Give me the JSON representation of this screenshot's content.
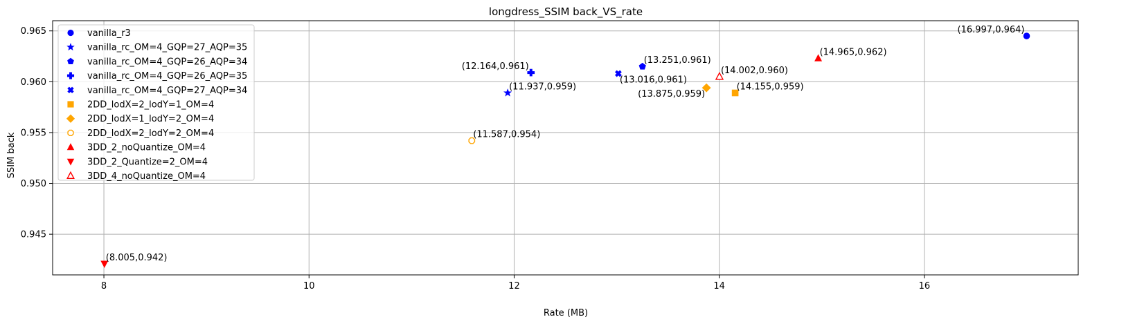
{
  "chart_data": {
    "type": "scatter",
    "title": "longdress_SSIM back_VS_rate",
    "xlabel": "Rate (MB)",
    "ylabel": "SSIM back",
    "xlim": [
      7.5,
      17.5
    ],
    "ylim": [
      0.941,
      0.966
    ],
    "xticks": [
      8,
      10,
      12,
      14,
      16
    ],
    "yticks": [
      0.945,
      0.95,
      0.955,
      0.96,
      0.965
    ],
    "ytick_labels": [
      "0.945",
      "0.950",
      "0.955",
      "0.960",
      "0.965"
    ],
    "grid": true,
    "legend_position": "upper-left",
    "series": [
      {
        "name": "vanilla_r3",
        "marker": "circle",
        "color": "#0000ff",
        "filled": true,
        "x": 16.997,
        "y": 0.9645,
        "label": "(16.997,0.964)",
        "label_side": "left"
      },
      {
        "name": "vanilla_rc_OM=4_GQP=27_AQP=35",
        "marker": "star",
        "color": "#0000ff",
        "filled": true,
        "x": 11.937,
        "y": 0.9589,
        "label": "(11.937,0.959)",
        "label_side": "right"
      },
      {
        "name": "vanilla_rc_OM=4_GQP=26_AQP=34",
        "marker": "pentagon",
        "color": "#0000ff",
        "filled": true,
        "x": 13.251,
        "y": 0.9615,
        "label": "(13.251,0.961)",
        "label_side": "right"
      },
      {
        "name": "vanilla_rc_OM=4_GQP=26_AQP=35",
        "marker": "plus",
        "color": "#0000ff",
        "filled": true,
        "x": 12.164,
        "y": 0.9609,
        "label": "(12.164,0.961)",
        "label_side": "left"
      },
      {
        "name": "vanilla_rc_OM=4_GQP=27_AQP=34",
        "marker": "x",
        "color": "#0000ff",
        "filled": true,
        "x": 13.016,
        "y": 0.9608,
        "label": "(13.016,0.961)",
        "label_side": "below-right"
      },
      {
        "name": "2DD_lodX=2_lodY=1_OM=4",
        "marker": "square",
        "color": "#ffa500",
        "filled": true,
        "x": 14.155,
        "y": 0.9589,
        "label": "(14.155,0.959)",
        "label_side": "right"
      },
      {
        "name": "2DD_lodX=1_lodY=2_OM=4",
        "marker": "diamond",
        "color": "#ffa500",
        "filled": true,
        "x": 13.875,
        "y": 0.9594,
        "label": "(13.875,0.959)",
        "label_side": "below-left"
      },
      {
        "name": "2DD_lodX=2_lodY=2_OM=4",
        "marker": "octagon",
        "color": "#ffa500",
        "filled": false,
        "x": 11.587,
        "y": 0.9542,
        "label": "(11.587,0.954)",
        "label_side": "right"
      },
      {
        "name": "3DD_2_noQuantize_OM=4",
        "marker": "triangle-up",
        "color": "#ff0000",
        "filled": true,
        "x": 14.965,
        "y": 0.9623,
        "label": "(14.965,0.962)",
        "label_side": "right"
      },
      {
        "name": "3DD_2_Quantize=2_OM=4",
        "marker": "triangle-down",
        "color": "#ff0000",
        "filled": true,
        "x": 8.005,
        "y": 0.9421,
        "label": "(8.005,0.942)",
        "label_side": "right"
      },
      {
        "name": "3DD_4_noQuantize_OM=4",
        "marker": "triangle-up",
        "color": "#ff0000",
        "filled": false,
        "x": 14.002,
        "y": 0.9605,
        "label": "(14.002,0.960)",
        "label_side": "right"
      }
    ]
  }
}
